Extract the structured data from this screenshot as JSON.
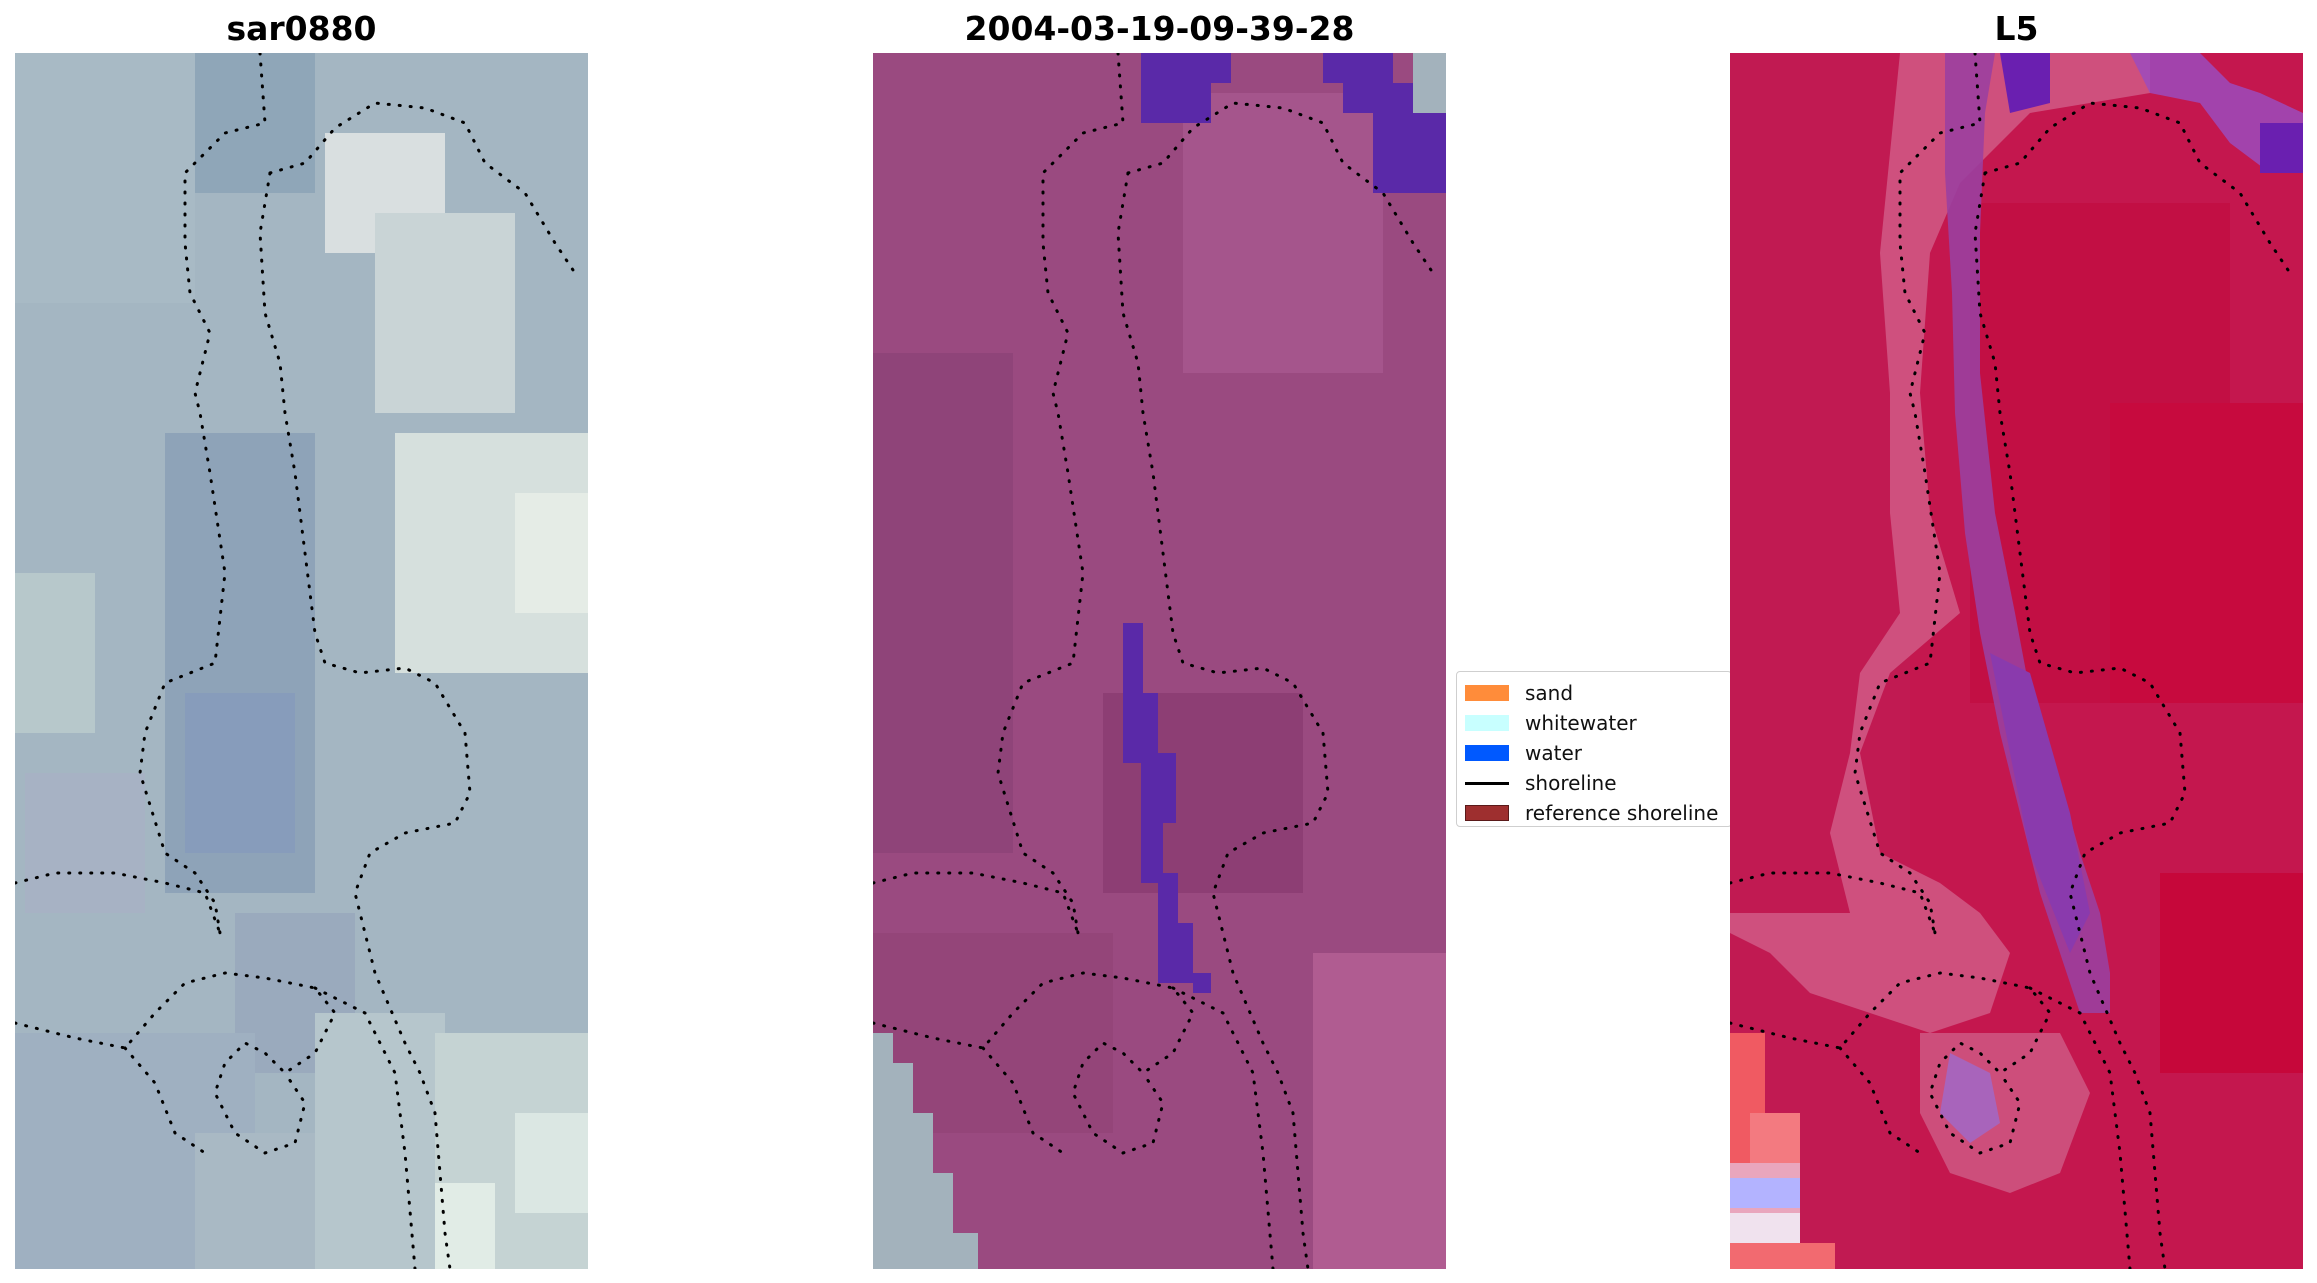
{
  "panels": [
    {
      "title": "sar0880"
    },
    {
      "title": "2004-03-19-09-39-28"
    },
    {
      "title": "L5"
    }
  ],
  "legend": {
    "items": [
      {
        "label": "sand",
        "color": "#ff8c3a",
        "kind": "patch"
      },
      {
        "label": "whitewater",
        "color": "#c8ffff",
        "kind": "patch"
      },
      {
        "label": "water",
        "color": "#0059ff",
        "kind": "patch"
      },
      {
        "label": "shoreline",
        "color": "#000000",
        "kind": "line"
      },
      {
        "label": "reference shoreline",
        "color": "#9e2f2f",
        "kind": "patch"
      }
    ]
  },
  "colors": {
    "rgb_base": "#a6b8c4",
    "classified_base": "#9a4a7f",
    "classified_water": "#5a29a8",
    "index_base": "#c4174e",
    "index_negative": "#b3b3ff"
  }
}
